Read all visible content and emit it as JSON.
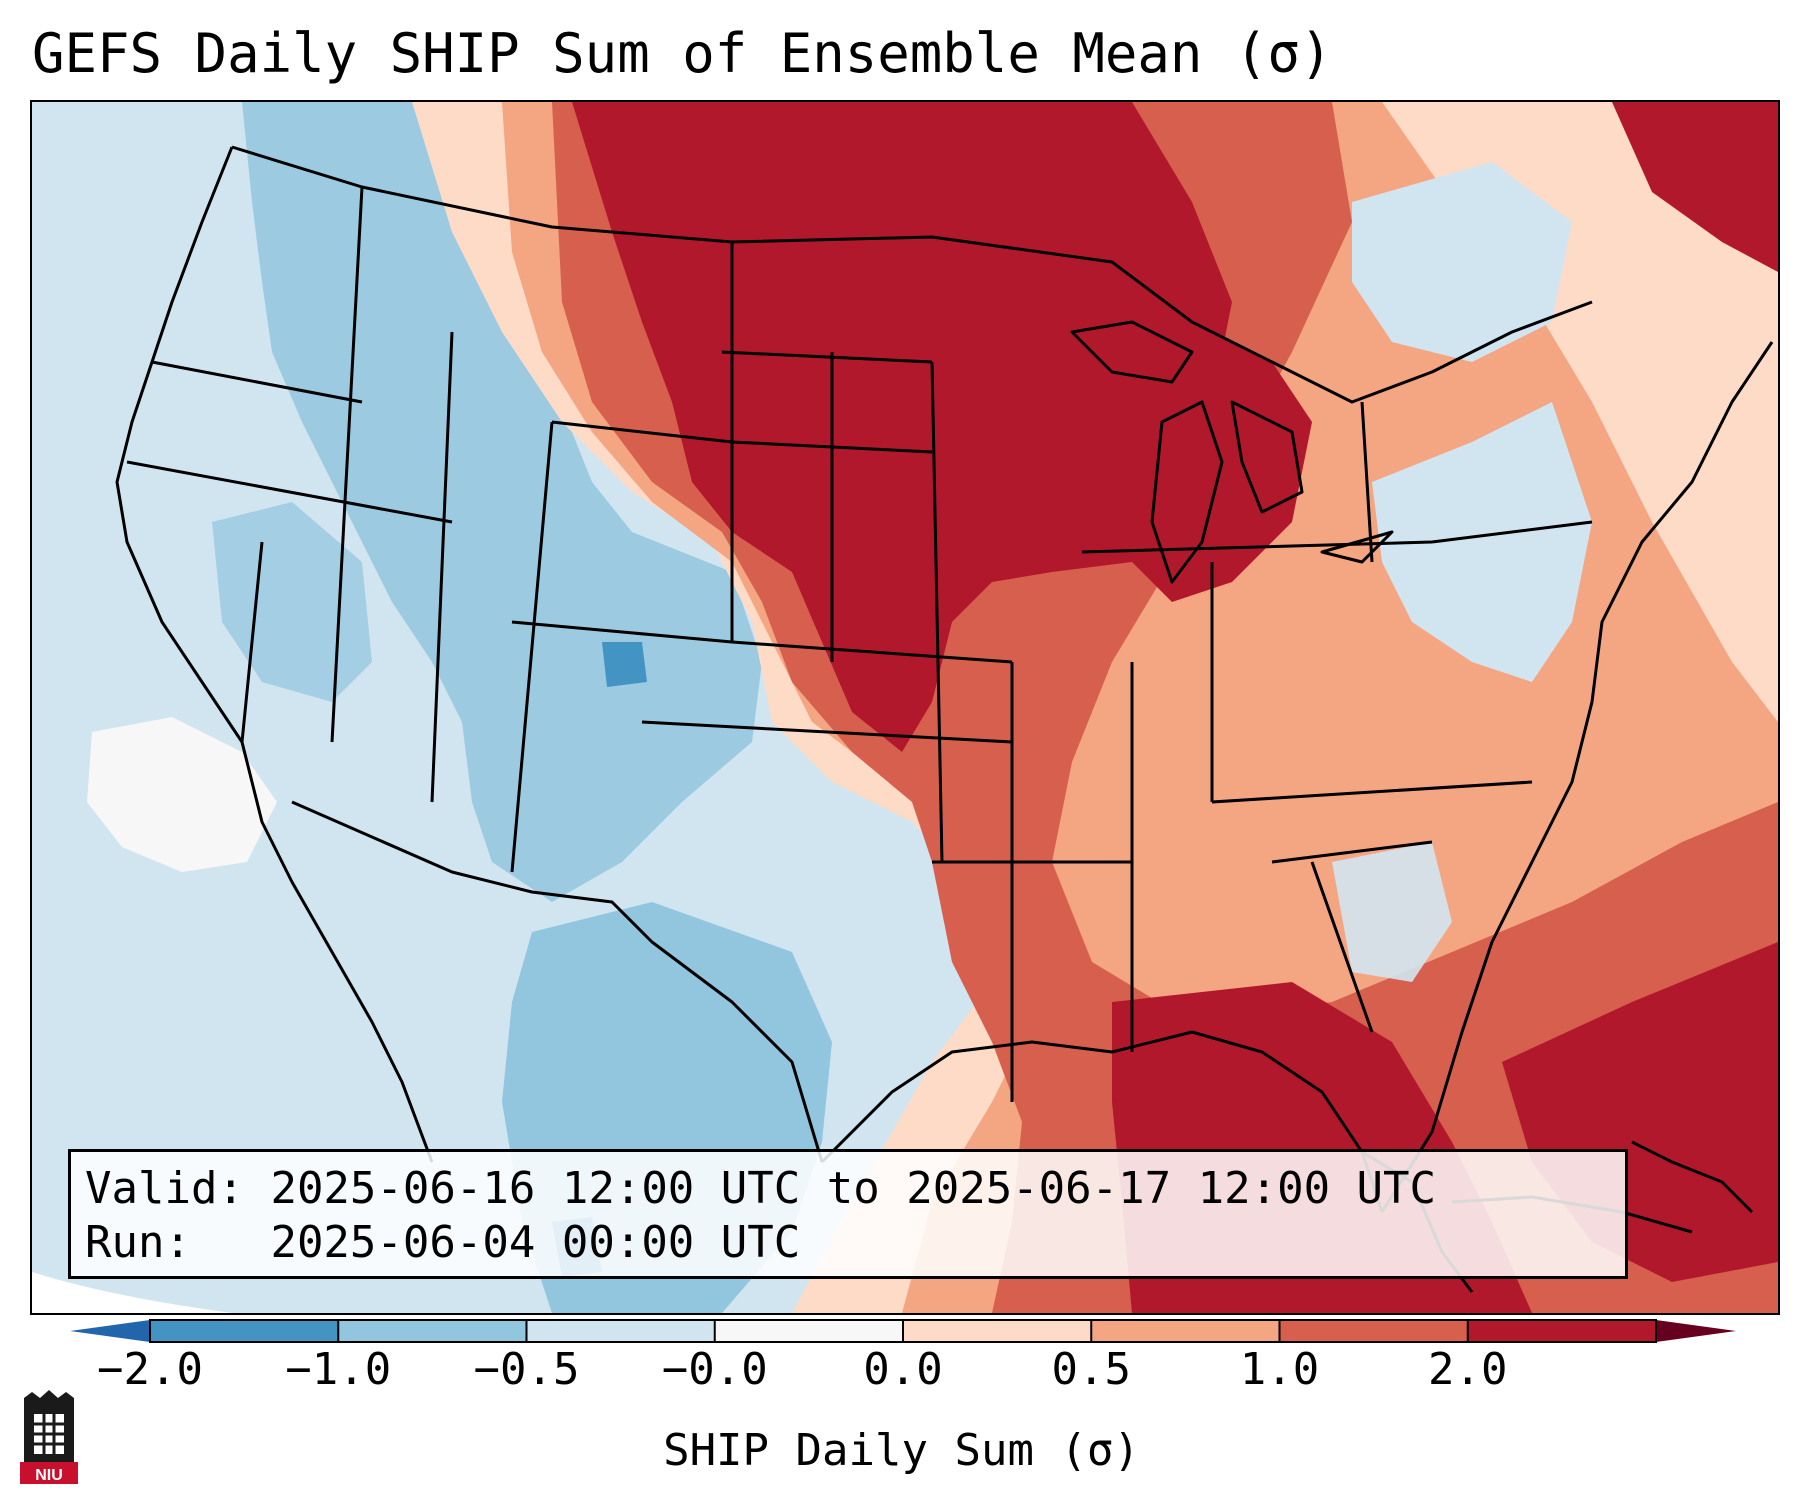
{
  "title": "GEFS Daily SHIP Sum of Ensemble Mean (σ)",
  "info": {
    "valid_label": "Valid:",
    "valid_value": "2025-06-16 12:00 UTC to 2025-06-17 12:00 UTC",
    "run_label": "Run:",
    "run_value": "2025-06-04 00:00 UTC"
  },
  "colorbar": {
    "label": "SHIP Daily Sum (σ)",
    "ticks": [
      "−2.0",
      "−1.0",
      "−0.5",
      "−0.0",
      "0.0",
      "0.5",
      "1.0",
      "2.0"
    ],
    "colors": [
      "#4393c3",
      "#92c5de",
      "#d1e5f0",
      "#f7f7f7",
      "#fddbc7",
      "#f4a582",
      "#d6604d",
      "#b2182b"
    ],
    "under_color": "#2166ac",
    "over_color": "#67001f"
  },
  "legend_colors": {
    "strong_positive": "#b2182b",
    "positive": "#d6604d",
    "weak_positive": "#f4a582",
    "slight_positive": "#fddbc7",
    "neutral": "#f7f7f7",
    "slight_negative": "#d1e5f0",
    "weak_negative": "#92c5de",
    "negative": "#4393c3"
  },
  "logo": {
    "text": "NIU"
  }
}
